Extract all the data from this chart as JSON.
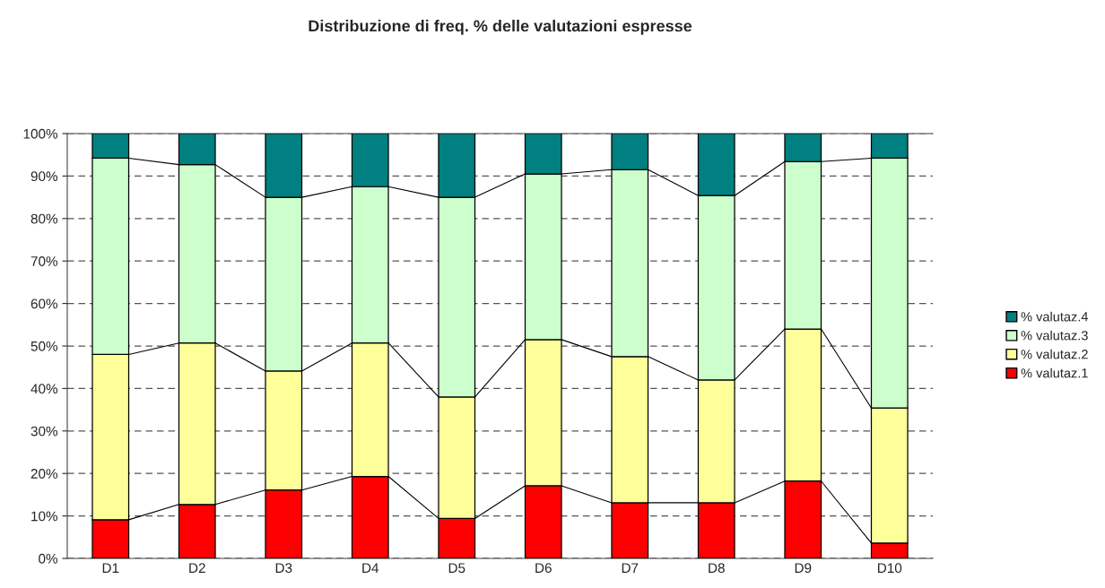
{
  "chart_data": {
    "type": "bar",
    "title": "Distribuzione di freq. % delle valutazioni espresse",
    "categories": [
      "D1",
      "D2",
      "D3",
      "D4",
      "D5",
      "D6",
      "D7",
      "D8",
      "D9",
      "D10"
    ],
    "stacked": true,
    "series": [
      {
        "name": "% valutaz.1",
        "color": "#ff0000",
        "values": [
          9.1,
          12.7,
          16.1,
          19.3,
          9.4,
          17.1,
          13.1,
          13.1,
          18.2,
          3.6
        ]
      },
      {
        "name": "% valutaz.2",
        "color": "#ffff99",
        "values": [
          38.9,
          38.0,
          28.0,
          31.4,
          28.6,
          34.4,
          34.4,
          28.9,
          35.8,
          31.8
        ]
      },
      {
        "name": "% valutaz.3",
        "color": "#ccffcc",
        "values": [
          46.2,
          42.0,
          40.9,
          36.8,
          47.0,
          39.0,
          44.0,
          43.4,
          39.4,
          58.8
        ]
      },
      {
        "name": "% valutaz.4",
        "color": "#008080",
        "values": [
          5.8,
          7.3,
          15.0,
          12.5,
          15.0,
          9.5,
          8.5,
          14.6,
          6.6,
          5.8
        ]
      }
    ],
    "ylim": [
      0,
      100
    ],
    "yticks": [
      {
        "value": 0,
        "label": "0%"
      },
      {
        "value": 10,
        "label": "10%"
      },
      {
        "value": 20,
        "label": "20%"
      },
      {
        "value": 30,
        "label": "30%"
      },
      {
        "value": 40,
        "label": "40%"
      },
      {
        "value": 50,
        "label": "50%"
      },
      {
        "value": 60,
        "label": "60%"
      },
      {
        "value": 70,
        "label": "70%"
      },
      {
        "value": 80,
        "label": "80%"
      },
      {
        "value": 90,
        "label": "90%"
      },
      {
        "value": 100,
        "label": "100%"
      }
    ],
    "grid": "y",
    "legend": "right"
  }
}
